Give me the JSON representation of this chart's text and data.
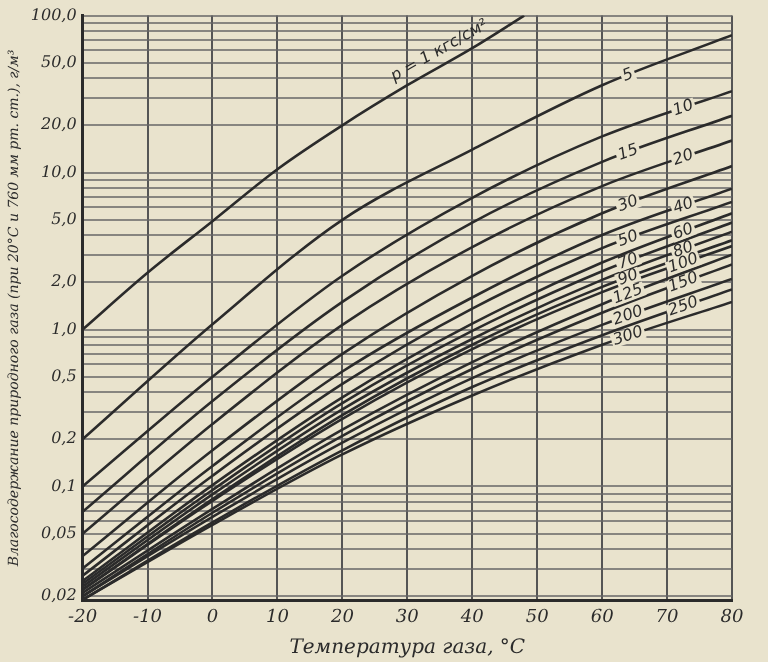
{
  "chart_data": {
    "type": "line",
    "xlabel": "Температура газа, °С",
    "ylabel": "Влагосодержание природного газа (при 20°С и 760 мм рт. ст.), г/м³",
    "x": [
      -20,
      0,
      20,
      40,
      60,
      80
    ],
    "xlim": [
      -20,
      80
    ],
    "xticks": [
      -20,
      -10,
      0,
      10,
      20,
      30,
      40,
      50,
      60,
      70,
      80
    ],
    "ylim": [
      0.0188,
      100
    ],
    "log": true,
    "yticks": [
      {
        "value": 0.02,
        "label": "0,02"
      },
      {
        "value": 0.03,
        "label": null
      },
      {
        "value": 0.04,
        "label": null
      },
      {
        "value": 0.05,
        "label": "0,05"
      },
      {
        "value": 0.06,
        "label": null
      },
      {
        "value": 0.07,
        "label": null
      },
      {
        "value": 0.08,
        "label": null
      },
      {
        "value": 0.09,
        "label": null
      },
      {
        "value": 0.1,
        "label": "0,1"
      },
      {
        "value": 0.2,
        "label": "0,2"
      },
      {
        "value": 0.3,
        "label": null
      },
      {
        "value": 0.4,
        "label": null
      },
      {
        "value": 0.5,
        "label": "0,5"
      },
      {
        "value": 0.6,
        "label": null
      },
      {
        "value": 0.7,
        "label": null
      },
      {
        "value": 0.8,
        "label": null
      },
      {
        "value": 0.9,
        "label": null
      },
      {
        "value": 1,
        "label": "1,0"
      },
      {
        "value": 2,
        "label": "2,0"
      },
      {
        "value": 3,
        "label": null
      },
      {
        "value": 4,
        "label": null
      },
      {
        "value": 5,
        "label": "5,0"
      },
      {
        "value": 6,
        "label": null
      },
      {
        "value": 7,
        "label": null
      },
      {
        "value": 8,
        "label": null
      },
      {
        "value": 9,
        "label": null
      },
      {
        "value": 10,
        "label": "10,0"
      },
      {
        "value": 20,
        "label": "20,0"
      },
      {
        "value": 30,
        "label": null
      },
      {
        "value": 40,
        "label": null
      },
      {
        "value": 50,
        "label": "50,0"
      },
      {
        "value": 60,
        "label": null
      },
      {
        "value": 70,
        "label": null
      },
      {
        "value": 80,
        "label": null
      },
      {
        "value": 90,
        "label": null
      },
      {
        "value": 100,
        "label": "100,0"
      }
    ],
    "grid": true,
    "legend": false,
    "marker": "none",
    "line_style": "solid",
    "series": [
      {
        "name": "p = 1 кгс/см²",
        "color": "#2b2b2b",
        "x": [
          -20,
          -10,
          0,
          10,
          20,
          30,
          40,
          48
        ],
        "values": [
          1.0,
          2.3,
          4.9,
          10.5,
          20,
          36,
          62,
          100
        ]
      },
      {
        "name": "5",
        "color": "#2b2b2b",
        "values": [
          0.2,
          1.08,
          5.0,
          14,
          36,
          75
        ]
      },
      {
        "name": "10",
        "color": "#2b2b2b",
        "values": [
          0.1,
          0.5,
          2.2,
          6.9,
          17,
          33
        ]
      },
      {
        "name": "15",
        "color": "#2b2b2b",
        "values": [
          0.069,
          0.35,
          1.5,
          4.8,
          11.7,
          23
        ]
      },
      {
        "name": "20",
        "color": "#2b2b2b",
        "values": [
          0.05,
          0.25,
          1.07,
          3.35,
          8.2,
          16
        ]
      },
      {
        "name": "30",
        "color": "#2b2b2b",
        "values": [
          0.036,
          0.17,
          0.7,
          2.2,
          5.5,
          11
        ]
      },
      {
        "name": "40",
        "color": "#2b2b2b",
        "values": [
          0.03,
          0.135,
          0.54,
          1.6,
          4.0,
          7.9
        ]
      },
      {
        "name": "50",
        "color": "#2b2b2b",
        "values": [
          0.027,
          0.117,
          0.45,
          1.36,
          3.3,
          6.5
        ]
      },
      {
        "name": "60",
        "color": "#2b2b2b",
        "values": [
          0.025,
          0.102,
          0.37,
          1.09,
          2.67,
          5.5
        ]
      },
      {
        "name": "70",
        "color": "#2b2b2b",
        "values": [
          0.024,
          0.095,
          0.34,
          0.98,
          2.35,
          4.8
        ]
      },
      {
        "name": "80",
        "color": "#2b2b2b",
        "values": [
          0.023,
          0.089,
          0.31,
          0.87,
          2.07,
          4.2
        ]
      },
      {
        "name": "90",
        "color": "#2b2b2b",
        "values": [
          0.022,
          0.083,
          0.285,
          0.8,
          1.87,
          3.7
        ]
      },
      {
        "name": "100",
        "color": "#2b2b2b",
        "values": [
          0.022,
          0.081,
          0.27,
          0.75,
          1.73,
          3.4
        ]
      },
      {
        "name": "125",
        "color": "#2b2b2b",
        "values": [
          0.021,
          0.072,
          0.23,
          0.62,
          1.45,
          3.0
        ]
      },
      {
        "name": "150",
        "color": "#2b2b2b",
        "values": [
          0.02,
          0.068,
          0.21,
          0.56,
          1.28,
          2.6
        ]
      },
      {
        "name": "200",
        "color": "#2b2b2b",
        "values": [
          0.02,
          0.064,
          0.19,
          0.49,
          1.07,
          2.1
        ]
      },
      {
        "name": "250",
        "color": "#2b2b2b",
        "values": [
          0.019,
          0.059,
          0.17,
          0.43,
          0.92,
          1.8
        ]
      },
      {
        "name": "300",
        "color": "#2b2b2b",
        "values": [
          0.019,
          0.057,
          0.16,
          0.38,
          0.8,
          1.5
        ]
      }
    ]
  }
}
